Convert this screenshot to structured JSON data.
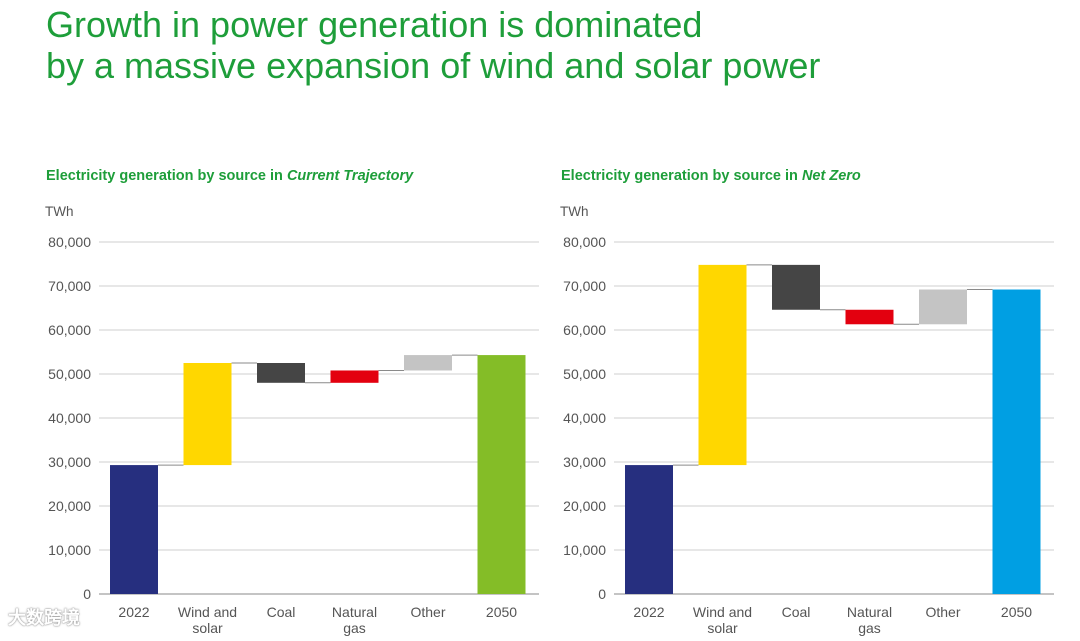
{
  "page": {
    "title_line1": "Growth in power generation is dominated",
    "title_line2": "by a massive expansion of wind and solar power",
    "watermark": "大数跨境"
  },
  "colors": {
    "title": "#1e9e3a",
    "grid": "#cfcfcf",
    "axis_text": "#555555",
    "connector": "#8a8a8a"
  },
  "chart_data": [
    {
      "type": "bar",
      "subtype": "waterfall",
      "title_prefix": "Electricity generation by source in ",
      "title_scenario": "Current Trajectory",
      "ylabel": "TWh",
      "ylim": [
        0,
        80000
      ],
      "yticks": [
        0,
        10000,
        20000,
        30000,
        40000,
        50000,
        60000,
        70000,
        80000
      ],
      "ytick_labels": [
        "0",
        "10,000",
        "20,000",
        "30,000",
        "40,000",
        "50,000",
        "60,000",
        "70,000",
        "80,000"
      ],
      "categories": [
        [
          "2022"
        ],
        [
          "Wind and",
          "solar"
        ],
        [
          "Coal"
        ],
        [
          "Natural",
          "gas"
        ],
        [
          "Other"
        ],
        [
          "2050"
        ]
      ],
      "bars": [
        {
          "category": "2022",
          "start": 0,
          "end": 29300,
          "color": "#262f7f"
        },
        {
          "category": "Wind and solar",
          "start": 29300,
          "end": 52500,
          "color": "#ffd700"
        },
        {
          "category": "Coal",
          "start": 52500,
          "end": 48000,
          "color": "#454545"
        },
        {
          "category": "Natural gas",
          "start": 48000,
          "end": 50800,
          "color": "#e3000f"
        },
        {
          "category": "Other",
          "start": 50800,
          "end": 54300,
          "color": "#c4c4c4"
        },
        {
          "category": "2050",
          "start": 0,
          "end": 54300,
          "color": "#84bd27"
        }
      ]
    },
    {
      "type": "bar",
      "subtype": "waterfall",
      "title_prefix": "Electricity generation by source in ",
      "title_scenario": "Net Zero",
      "ylabel": "TWh",
      "ylim": [
        0,
        80000
      ],
      "yticks": [
        0,
        10000,
        20000,
        30000,
        40000,
        50000,
        60000,
        70000,
        80000
      ],
      "ytick_labels": [
        "0",
        "10,000",
        "20,000",
        "30,000",
        "40,000",
        "50,000",
        "60,000",
        "70,000",
        "80,000"
      ],
      "categories": [
        [
          "2022"
        ],
        [
          "Wind and",
          "solar"
        ],
        [
          "Coal"
        ],
        [
          "Natural",
          "gas"
        ],
        [
          "Other"
        ],
        [
          "2050"
        ]
      ],
      "bars": [
        {
          "category": "2022",
          "start": 0,
          "end": 29300,
          "color": "#262f7f"
        },
        {
          "category": "Wind and solar",
          "start": 29300,
          "end": 74800,
          "color": "#ffd700"
        },
        {
          "category": "Coal",
          "start": 74800,
          "end": 64600,
          "color": "#454545"
        },
        {
          "category": "Natural gas",
          "start": 64600,
          "end": 61300,
          "color": "#e3000f"
        },
        {
          "category": "Other",
          "start": 61300,
          "end": 69200,
          "color": "#c4c4c4"
        },
        {
          "category": "2050",
          "start": 0,
          "end": 69200,
          "color": "#009fe3"
        }
      ]
    }
  ]
}
